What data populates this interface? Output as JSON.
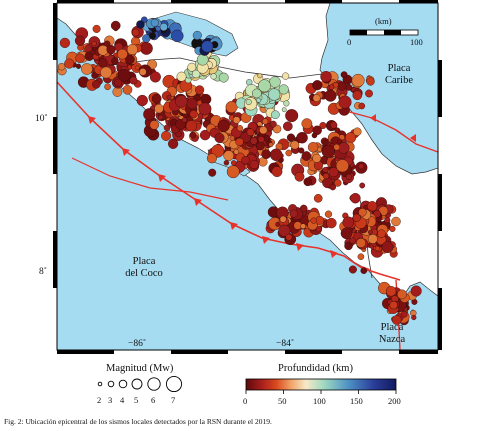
{
  "map": {
    "plates": {
      "caribe": "Placa\nCaribe",
      "coco": "Placa\ndel Coco",
      "nazca": "Placa\nNazca"
    },
    "lat_labels": [
      "10˚",
      "8˚"
    ],
    "lon_labels": [
      "−86˚",
      "−84˚"
    ],
    "scale_bar": {
      "unit_label": "(km)",
      "tick_labels": [
        "0",
        "100"
      ]
    },
    "colors": {
      "ocean": "#a6dcf2",
      "land": "#ffffff",
      "fault": "#e8322a"
    }
  },
  "legend": {
    "magnitude": {
      "title": "Magnitud (Mw)",
      "values": [
        "2",
        "3",
        "4",
        "5",
        "6",
        "7"
      ]
    },
    "depth": {
      "title": "Profundidad (km)",
      "tick_labels": [
        "0",
        "50",
        "100",
        "150",
        "200"
      ],
      "colors": [
        "#5c0a0a",
        "#a51d1d",
        "#d9481d",
        "#f0a468",
        "#f7e9c8",
        "#9fd9c0",
        "#4f93c6",
        "#2a3e9a",
        "#111a5e"
      ]
    }
  },
  "caption": "Fig. 2: Ubicación epicentral de los sismos locales detectados por la RSN durante el 2019."
}
